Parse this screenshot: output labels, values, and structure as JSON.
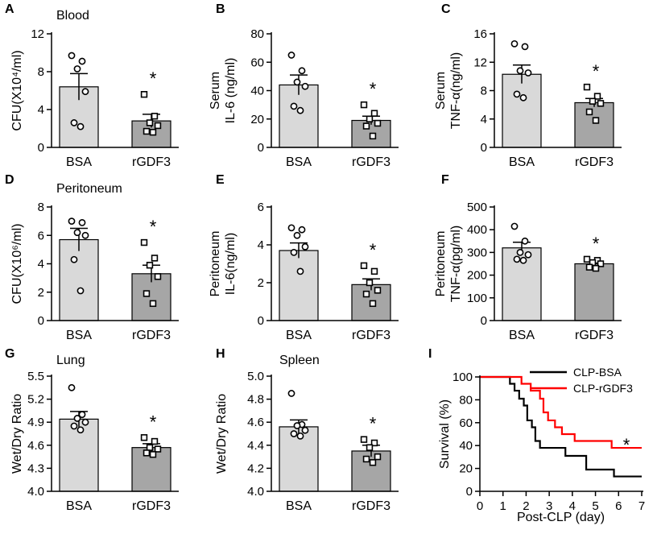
{
  "chart_data": [
    {
      "panel": "A",
      "type": "bar",
      "title": "Blood",
      "ylabel": [
        "CFU(X10⁴/ml)"
      ],
      "categories": [
        "BSA",
        "rGDF3"
      ],
      "ylim": [
        0,
        12
      ],
      "yticks": [
        "0",
        "4",
        "8",
        "12"
      ],
      "ytick_values": [
        0,
        4,
        8,
        12
      ],
      "values": [
        6.4,
        2.8
      ],
      "errors": [
        1.4,
        0.7
      ],
      "points": [
        [
          9.7,
          9.1,
          8.3,
          5.9,
          2.6,
          2.2
        ],
        [
          5.6,
          3.3,
          2.6,
          2.3,
          1.7,
          1.6
        ]
      ],
      "significance": "*"
    },
    {
      "panel": "B",
      "type": "bar",
      "title": "",
      "ylabel": [
        "Serum",
        "IL-6 (ng/ml)"
      ],
      "categories": [
        "BSA",
        "rGDF3"
      ],
      "ylim": [
        0,
        80
      ],
      "yticks": [
        "0",
        "20",
        "40",
        "60",
        "80"
      ],
      "ytick_values": [
        0,
        20,
        40,
        60,
        80
      ],
      "values": [
        44,
        19
      ],
      "errors": [
        7,
        3
      ],
      "points": [
        [
          65,
          54,
          46,
          43,
          29,
          26
        ],
        [
          30,
          24,
          20,
          17,
          15,
          8
        ]
      ],
      "significance": "*"
    },
    {
      "panel": "C",
      "type": "bar",
      "title": "",
      "ylabel": [
        "Serum",
        "TNF-α(ng/ml)"
      ],
      "categories": [
        "BSA",
        "rGDF3"
      ],
      "ylim": [
        0,
        16
      ],
      "yticks": [
        "0",
        "4",
        "8",
        "12",
        "16"
      ],
      "ytick_values": [
        0,
        4,
        8,
        12,
        16
      ],
      "values": [
        10.3,
        6.3
      ],
      "errors": [
        1.3,
        0.6
      ],
      "points": [
        [
          14.6,
          14.2,
          10.8,
          10.5,
          7.5,
          7.0
        ],
        [
          8.5,
          7.2,
          6.5,
          6.2,
          5.0,
          3.8
        ]
      ],
      "significance": "*"
    },
    {
      "panel": "D",
      "type": "bar",
      "title": "Peritoneum",
      "ylabel": [
        "CFU(X10⁶/ml)"
      ],
      "categories": [
        "BSA",
        "rGDF3"
      ],
      "ylim": [
        0,
        8
      ],
      "yticks": [
        "0",
        "2",
        "4",
        "6",
        "8"
      ],
      "ytick_values": [
        0,
        2,
        4,
        6,
        8
      ],
      "values": [
        5.7,
        3.3
      ],
      "errors": [
        0.8,
        0.6
      ],
      "points": [
        [
          7.0,
          6.9,
          6.2,
          6.0,
          4.3,
          2.1
        ],
        [
          5.5,
          4.4,
          3.9,
          3.1,
          1.9,
          1.2
        ]
      ],
      "significance": "*"
    },
    {
      "panel": "E",
      "type": "bar",
      "title": "",
      "ylabel": [
        "Peritoneum",
        "IL-6(ng/ml)"
      ],
      "categories": [
        "BSA",
        "rGDF3"
      ],
      "ylim": [
        0,
        6
      ],
      "yticks": [
        "0",
        "2",
        "4",
        "6"
      ],
      "ytick_values": [
        0,
        2,
        4,
        6
      ],
      "values": [
        3.7,
        1.9
      ],
      "errors": [
        0.4,
        0.3
      ],
      "points": [
        [
          4.9,
          4.8,
          4.5,
          3.9,
          3.6,
          2.6
        ],
        [
          2.9,
          2.6,
          2.0,
          1.6,
          1.4,
          0.9
        ]
      ],
      "significance": "*"
    },
    {
      "panel": "F",
      "type": "bar",
      "title": "",
      "ylabel": [
        "Peritoneum",
        "TNF-α(pg/ml)"
      ],
      "categories": [
        "BSA",
        "rGDF3"
      ],
      "ylim": [
        0,
        500
      ],
      "yticks": [
        "0",
        "100",
        "200",
        "300",
        "400",
        "500"
      ],
      "ytick_values": [
        0,
        100,
        200,
        300,
        400,
        500
      ],
      "values": [
        320,
        250
      ],
      "errors": [
        25,
        10
      ],
      "points": [
        [
          415,
          350,
          300,
          290,
          270,
          265
        ],
        [
          270,
          265,
          255,
          250,
          235,
          230
        ]
      ],
      "significance": "*"
    },
    {
      "panel": "G",
      "type": "bar",
      "title": "Lung",
      "ylabel": [
        "Wet/Dry Ratio"
      ],
      "categories": [
        "BSA",
        "rGDF3"
      ],
      "ylim": [
        4.0,
        5.5
      ],
      "yticks": [
        "4.0",
        "4.3",
        "4.6",
        "4.9",
        "5.2",
        "5.5"
      ],
      "ytick_values": [
        4.0,
        4.3,
        4.6,
        4.9,
        5.2,
        5.5
      ],
      "values": [
        4.94,
        4.57
      ],
      "errors": [
        0.1,
        0.05
      ],
      "points": [
        [
          5.35,
          5.0,
          4.95,
          4.9,
          4.85,
          4.8
        ],
        [
          4.7,
          4.65,
          4.57,
          4.55,
          4.5,
          4.48
        ]
      ],
      "significance": "*"
    },
    {
      "panel": "H",
      "type": "bar",
      "title": "Spleen",
      "ylabel": [
        "Wet/Dry Ratio"
      ],
      "categories": [
        "BSA",
        "rGDF3"
      ],
      "ylim": [
        4.0,
        5.0
      ],
      "yticks": [
        "4.0",
        "4.2",
        "4.4",
        "4.6",
        "4.8",
        "5.0"
      ],
      "ytick_values": [
        4.0,
        4.2,
        4.4,
        4.6,
        4.8,
        5.0
      ],
      "values": [
        4.56,
        4.35
      ],
      "errors": [
        0.06,
        0.05
      ],
      "points": [
        [
          4.85,
          4.58,
          4.57,
          4.53,
          4.5,
          4.48
        ],
        [
          4.45,
          4.42,
          4.38,
          4.3,
          4.28,
          4.25
        ]
      ],
      "significance": "*"
    },
    {
      "panel": "I",
      "type": "line",
      "step": true,
      "xlabel": "Post-CLP (day)",
      "ylabel": [
        "Survival (%)"
      ],
      "xlim": [
        0,
        7
      ],
      "xticks": [
        "0",
        "1",
        "2",
        "3",
        "4",
        "5",
        "6",
        "7"
      ],
      "xtick_values": [
        0,
        1,
        2,
        3,
        4,
        5,
        6,
        7
      ],
      "ylim": [
        0,
        100
      ],
      "yticks": [
        "0",
        "20",
        "40",
        "60",
        "80",
        "100"
      ],
      "ytick_values": [
        0,
        20,
        40,
        60,
        80,
        100
      ],
      "series": [
        {
          "name": "CLP-BSA",
          "color": "#000000",
          "x": [
            0,
            1.3,
            1.5,
            1.7,
            1.9,
            2.05,
            2.25,
            2.4,
            2.6,
            2.8,
            3.1,
            3.7,
            4.6,
            5.8,
            7.0
          ],
          "y": [
            100,
            94,
            88,
            81,
            75,
            62,
            56,
            44,
            38,
            38,
            38,
            31,
            19,
            13,
            13
          ]
        },
        {
          "name": "CLP-rGDF3",
          "color": "#ff0000",
          "x": [
            0,
            1.8,
            2.2,
            2.6,
            2.75,
            2.95,
            3.25,
            3.55,
            4.1,
            5.0,
            5.7,
            7.0
          ],
          "y": [
            100,
            94,
            88,
            81,
            69,
            62,
            56,
            50,
            44,
            44,
            38,
            38
          ]
        }
      ],
      "significance": "*"
    }
  ]
}
